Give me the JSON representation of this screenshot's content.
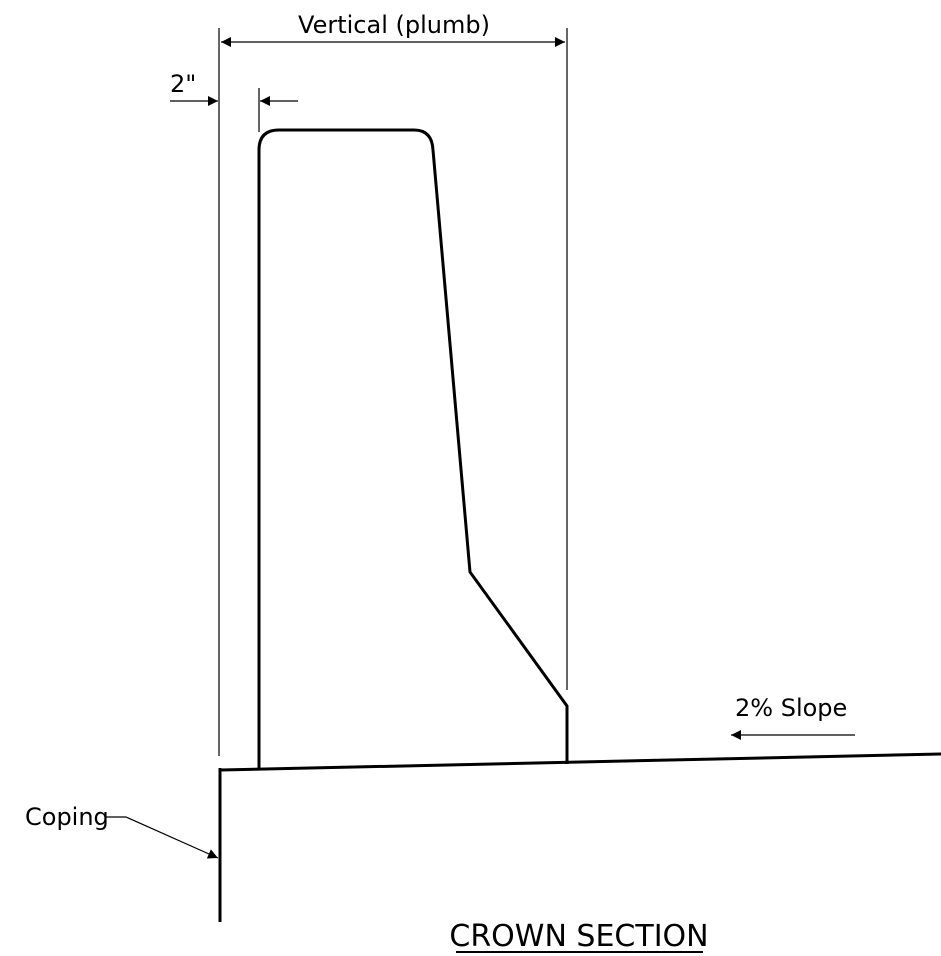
{
  "labels": {
    "vertical_dim": "Vertical (plumb)",
    "offset_dim": "2\"",
    "slope": "2% Slope",
    "coping": "Coping",
    "title": "CROWN SECTION"
  }
}
